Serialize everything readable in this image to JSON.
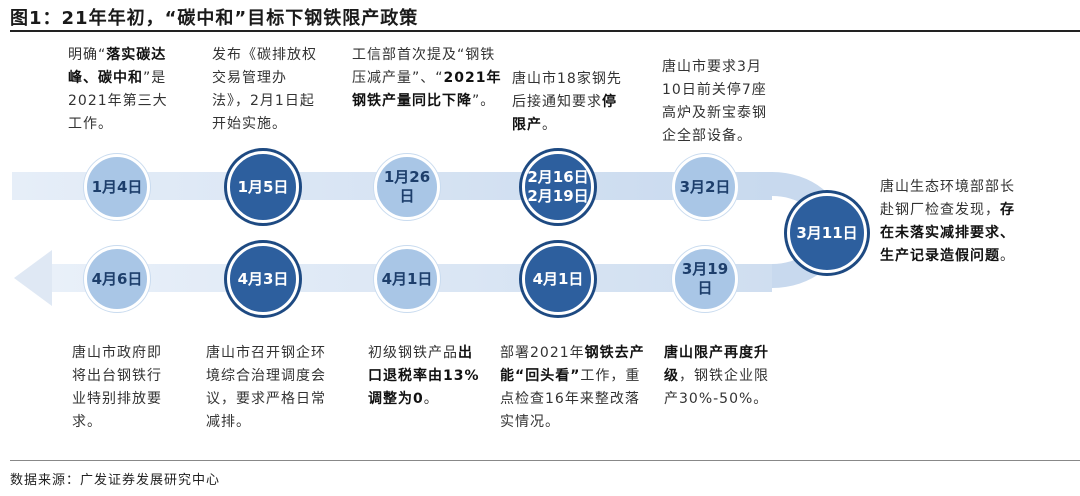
{
  "title": "图1：21年年初，“碳中和”目标下钢铁限产政策",
  "source": "数据来源：广发证券发展研究中心",
  "nodes": [
    {
      "label": "1月4日"
    },
    {
      "label": "1月5日"
    },
    {
      "label": "1月26日"
    },
    {
      "label": "2月16日 2月19日",
      "line1": "2月16日",
      "line2": "2月19日"
    },
    {
      "label": "3月2日"
    },
    {
      "label": "3月11日"
    },
    {
      "label": "3月19日"
    },
    {
      "label": "4月1日"
    },
    {
      "label": "4月1日"
    },
    {
      "label": "4月3日"
    },
    {
      "label": "4月6日"
    }
  ],
  "events": {
    "jan4": {
      "a": "明确“",
      "b": "落实碳达峰、碳中和",
      "c": "”是2021年第三大工作。"
    },
    "jan5": {
      "a": "发布《碳排放权交易管理办法》，2月1日起开始实施。"
    },
    "jan26": {
      "a": "工信部首次提及“钢铁压减产量”、“",
      "b": "2021年钢铁产量同比下降",
      "c": "”。"
    },
    "feb": {
      "a": "唐山市18家钢先后接通知要求",
      "b": "停限产",
      "c": "。"
    },
    "mar2": {
      "a": "唐山市要求3月10日前关停7座高炉及新宝泰钢企全部设备。"
    },
    "mar11": {
      "a": "唐山生态环境部部长赴钢厂检查发现，",
      "b": "存在未落实减排要求、生产记录造假问题",
      "c": "。"
    },
    "mar19": {
      "b": "唐山限产再度升级",
      "a": "，钢铁企业限产30%-50%。"
    },
    "apr1b": {
      "a": "部署2021年",
      "b": "钢铁去产能“回头看”",
      "c": "工作，重点检查16年来整改落实情况。"
    },
    "apr1a": {
      "a": "初级钢铁产品",
      "b": "出口退税率由13%调整为0",
      "c": "。"
    },
    "apr3": {
      "a": "唐山市召开钢企环境综合治理调度会议，要求严格日常减排。"
    },
    "apr6": {
      "a": "唐山市政府即将出台钢铁行业特别排放要求。"
    }
  }
}
